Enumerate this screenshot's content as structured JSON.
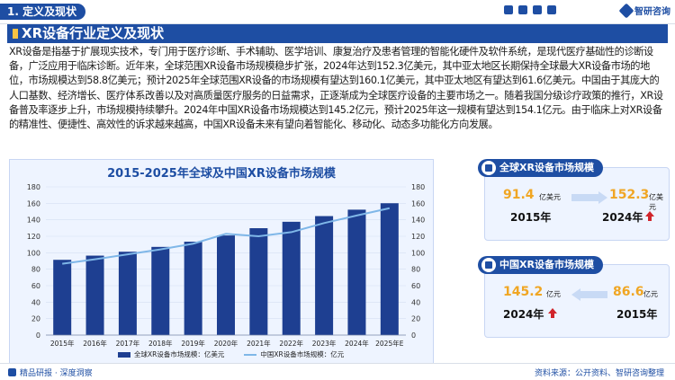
{
  "header": {
    "section_label": "1. 定义及现状",
    "logo_text": "智研咨询"
  },
  "title": "XR设备行业定义及现状",
  "paragraph": "XR设备是指基于扩展现实技术，专门用于医疗诊断、手术辅助、医学培训、康复治疗及患者管理的智能化硬件及软件系统，是现代医疗基础性的诊断设备，广泛应用于临床诊断。近年来，全球范围XR设备市场规模稳步扩张，2024年达到152.3亿美元，其中亚太地区长期保持全球最大XR设备市场的地位，市场规模达到58.8亿美元；预计2025年全球范围XR设备的市场规模有望达到160.1亿美元，其中亚太地区有望达到61.6亿美元。中国由于其庞大的人口基数、经济增长、医疗体系改善以及对高质量医疗服务的日益需求，正逐渐成为全球医疗设备的主要市场之一。随着我国分级诊疗政策的推行，XR设备普及率逐步上升，市场规模持续攀升。2024年中国XR设备市场规模达到145.2亿元，预计2025年这一规模有望达到154.1亿元。由于临床上对XR设备的精准性、便捷性、高效性的诉求越来越高，中国XR设备未来有望向着智能化、移动化、动态多功能化方向发展。",
  "chart_data": {
    "type": "bar",
    "title": "2015-2025年全球及中国XR设备市场规模",
    "categories": [
      "2015年",
      "2016年",
      "2017年",
      "2018年",
      "2019年",
      "2020年",
      "2021年",
      "2022年",
      "2023年",
      "2024年",
      "2025年E"
    ],
    "series": [
      {
        "name": "全球XR设备市场规模：亿美元",
        "type": "bar",
        "axis": "left",
        "values": [
          91.4,
          96.5,
          101.2,
          107.1,
          113.4,
          121.0,
          129.8,
          137.6,
          144.5,
          152.3,
          160.1
        ]
      },
      {
        "name": "中国XR设备市场规模：亿元",
        "type": "line",
        "axis": "right",
        "values": [
          86.6,
          92.0,
          98.0,
          104.0,
          111.0,
          123.0,
          120.0,
          125.0,
          136.0,
          145.2,
          154.1
        ]
      }
    ],
    "ylim_left": [
      0,
      180
    ],
    "ylim_right": [
      0,
      180
    ],
    "yticks": [
      0,
      20,
      40,
      60,
      80,
      100,
      120,
      140,
      160,
      180
    ],
    "grid": true,
    "legend_position": "bottom",
    "colors": {
      "bar": "#1e3f91",
      "line": "#7fb7e8"
    }
  },
  "card_global": {
    "title": "全球XR设备市场规模",
    "val_left": "91.4",
    "unit_left": "亿美元",
    "year_left": "2015年",
    "val_right": "152.3",
    "unit_right": "亿美元",
    "year_right": "2024年"
  },
  "card_china": {
    "title": "中国XR设备市场规模",
    "val_left": "145.2",
    "unit_left": "亿元",
    "year_left": "2024年",
    "val_right": "86.6",
    "unit_right": "亿元",
    "year_right": "2015年"
  },
  "footer": {
    "left": "精品研报 · 深度洞察",
    "right": "资料来源：公开资料、智研咨询整理"
  },
  "icons": [
    "grid-icon",
    "chart-icon",
    "doc-icon",
    "share-icon",
    "logo-icon",
    "up-arrow-icon",
    "right-arrow-icon"
  ]
}
